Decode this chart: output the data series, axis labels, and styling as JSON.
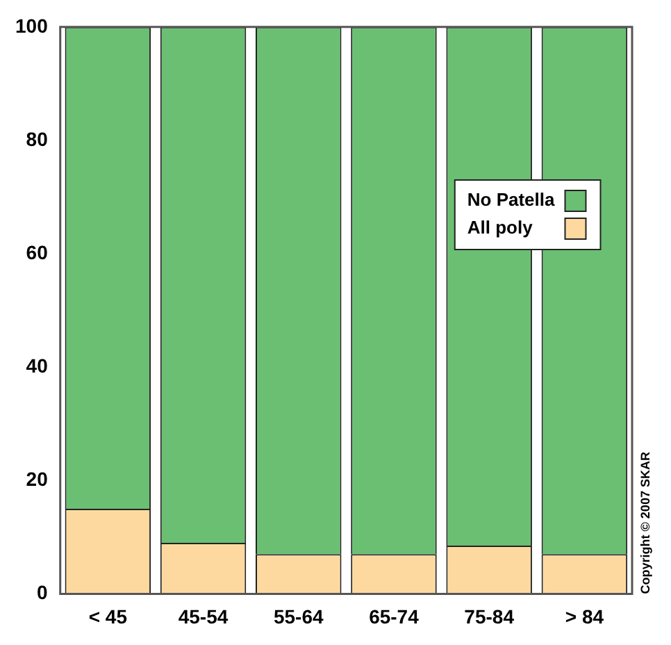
{
  "chart_data": {
    "type": "bar",
    "stacked": true,
    "categories": [
      "< 45",
      "45-54",
      "55-64",
      "65-74",
      "75-84",
      "> 84"
    ],
    "series": [
      {
        "name": "All poly",
        "color": "#fdd9a0",
        "values": [
          15,
          9,
          7,
          7,
          8.5,
          7
        ]
      },
      {
        "name": "No Patella",
        "color": "#6abf72",
        "values": [
          85,
          91,
          93,
          93,
          91.5,
          93
        ]
      }
    ],
    "ylim": [
      0,
      100
    ],
    "yticks": [
      0,
      20,
      40,
      60,
      80,
      100
    ],
    "grid": false,
    "legend": "right",
    "annotations": [
      "Copyright © 2007 SKAR"
    ]
  }
}
